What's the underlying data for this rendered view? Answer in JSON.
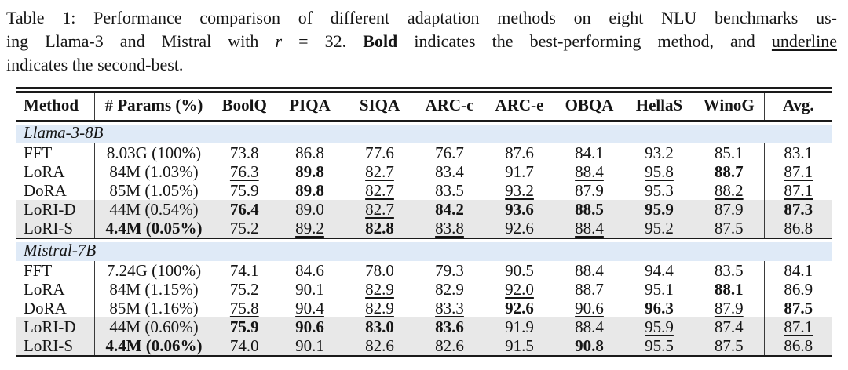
{
  "caption": {
    "lines": [
      {
        "justify": true,
        "segments": [
          {
            "text": "Table 1: Performance comparison of different adaptation methods on eight NLU benchmarks us-",
            "style": "plain"
          }
        ]
      },
      {
        "justify": true,
        "segments": [
          {
            "text": "ing Llama-3 and Mistral with ",
            "style": "plain"
          },
          {
            "text": "r",
            "style": "italic"
          },
          {
            "text": " = 32. ",
            "style": "plain"
          },
          {
            "text": "Bold",
            "style": "bold"
          },
          {
            "text": " indicates the best-performing method, and ",
            "style": "plain"
          },
          {
            "text": "underline",
            "style": "underline"
          }
        ]
      },
      {
        "justify": false,
        "segments": [
          {
            "text": "indicates the second-best.",
            "style": "plain"
          }
        ]
      }
    ]
  },
  "table": {
    "columns": [
      "Method",
      "# Params (%)",
      "BoolQ",
      "PIQA",
      "SIQA",
      "ARC-c",
      "ARC-e",
      "OBQA",
      "HellaS",
      "WinoG",
      "Avg."
    ],
    "highlight_color": "#e8e8e8",
    "section_color": "#dfeaf7",
    "sections": [
      {
        "title": "Llama-3-8B",
        "rows": [
          {
            "method": "FFT",
            "params": "8.03G (100%)",
            "params_bold": false,
            "highlight": false,
            "cells": [
              {
                "v": "73.8",
                "f": ""
              },
              {
                "v": "86.8",
                "f": ""
              },
              {
                "v": "77.6",
                "f": ""
              },
              {
                "v": "76.7",
                "f": ""
              },
              {
                "v": "87.6",
                "f": ""
              },
              {
                "v": "84.1",
                "f": ""
              },
              {
                "v": "93.2",
                "f": ""
              },
              {
                "v": "85.1",
                "f": ""
              },
              {
                "v": "83.1",
                "f": ""
              }
            ]
          },
          {
            "method": "LoRA",
            "params": "84M (1.03%)",
            "params_bold": false,
            "highlight": false,
            "cells": [
              {
                "v": "76.3",
                "f": "u"
              },
              {
                "v": "89.8",
                "f": "b"
              },
              {
                "v": "82.7",
                "f": "u"
              },
              {
                "v": "83.4",
                "f": ""
              },
              {
                "v": "91.7",
                "f": ""
              },
              {
                "v": "88.4",
                "f": "u"
              },
              {
                "v": "95.8",
                "f": "u"
              },
              {
                "v": "88.7",
                "f": "b"
              },
              {
                "v": "87.1",
                "f": "u"
              }
            ]
          },
          {
            "method": "DoRA",
            "params": "85M (1.05%)",
            "params_bold": false,
            "highlight": false,
            "cells": [
              {
                "v": "75.9",
                "f": ""
              },
              {
                "v": "89.8",
                "f": "b"
              },
              {
                "v": "82.7",
                "f": "u"
              },
              {
                "v": "83.5",
                "f": ""
              },
              {
                "v": "93.2",
                "f": "u"
              },
              {
                "v": "87.9",
                "f": ""
              },
              {
                "v": "95.3",
                "f": ""
              },
              {
                "v": "88.2",
                "f": "u"
              },
              {
                "v": "87.1",
                "f": "u"
              }
            ]
          },
          {
            "method": "LoRI-D",
            "params": "44M (0.54%)",
            "params_bold": false,
            "highlight": true,
            "cells": [
              {
                "v": "76.4",
                "f": "b"
              },
              {
                "v": "89.0",
                "f": ""
              },
              {
                "v": "82.7",
                "f": "u"
              },
              {
                "v": "84.2",
                "f": "b"
              },
              {
                "v": "93.6",
                "f": "b"
              },
              {
                "v": "88.5",
                "f": "b"
              },
              {
                "v": "95.9",
                "f": "b"
              },
              {
                "v": "87.9",
                "f": ""
              },
              {
                "v": "87.3",
                "f": "b"
              }
            ]
          },
          {
            "method": "LoRI-S",
            "params": "4.4M (0.05%)",
            "params_bold": true,
            "highlight": true,
            "cells": [
              {
                "v": "75.2",
                "f": ""
              },
              {
                "v": "89.2",
                "f": "u"
              },
              {
                "v": "82.8",
                "f": "b"
              },
              {
                "v": "83.8",
                "f": "u"
              },
              {
                "v": "92.6",
                "f": ""
              },
              {
                "v": "88.4",
                "f": "u"
              },
              {
                "v": "95.2",
                "f": ""
              },
              {
                "v": "87.5",
                "f": ""
              },
              {
                "v": "86.8",
                "f": ""
              }
            ]
          }
        ]
      },
      {
        "title": "Mistral-7B",
        "rows": [
          {
            "method": "FFT",
            "params": "7.24G (100%)",
            "params_bold": false,
            "highlight": false,
            "cells": [
              {
                "v": "74.1",
                "f": ""
              },
              {
                "v": "84.6",
                "f": ""
              },
              {
                "v": "78.0",
                "f": ""
              },
              {
                "v": "79.3",
                "f": ""
              },
              {
                "v": "90.5",
                "f": ""
              },
              {
                "v": "88.4",
                "f": ""
              },
              {
                "v": "94.4",
                "f": ""
              },
              {
                "v": "83.5",
                "f": ""
              },
              {
                "v": "84.1",
                "f": ""
              }
            ]
          },
          {
            "method": "LoRA",
            "params": "84M (1.15%)",
            "params_bold": false,
            "highlight": false,
            "cells": [
              {
                "v": "75.2",
                "f": ""
              },
              {
                "v": "90.1",
                "f": ""
              },
              {
                "v": "82.9",
                "f": "u"
              },
              {
                "v": "82.9",
                "f": ""
              },
              {
                "v": "92.0",
                "f": "u"
              },
              {
                "v": "88.7",
                "f": ""
              },
              {
                "v": "95.1",
                "f": ""
              },
              {
                "v": "88.1",
                "f": "b"
              },
              {
                "v": "86.9",
                "f": ""
              }
            ]
          },
          {
            "method": "DoRA",
            "params": "85M (1.16%)",
            "params_bold": false,
            "highlight": false,
            "cells": [
              {
                "v": "75.8",
                "f": "u"
              },
              {
                "v": "90.4",
                "f": "u"
              },
              {
                "v": "82.9",
                "f": "u"
              },
              {
                "v": "83.3",
                "f": "u"
              },
              {
                "v": "92.6",
                "f": "b"
              },
              {
                "v": "90.6",
                "f": "u"
              },
              {
                "v": "96.3",
                "f": "b"
              },
              {
                "v": "87.9",
                "f": "u"
              },
              {
                "v": "87.5",
                "f": "b"
              }
            ]
          },
          {
            "method": "LoRI-D",
            "params": "44M (0.60%)",
            "params_bold": false,
            "highlight": true,
            "cells": [
              {
                "v": "75.9",
                "f": "b"
              },
              {
                "v": "90.6",
                "f": "b"
              },
              {
                "v": "83.0",
                "f": "b"
              },
              {
                "v": "83.6",
                "f": "b"
              },
              {
                "v": "91.9",
                "f": ""
              },
              {
                "v": "88.4",
                "f": ""
              },
              {
                "v": "95.9",
                "f": "u"
              },
              {
                "v": "87.4",
                "f": ""
              },
              {
                "v": "87.1",
                "f": "u"
              }
            ]
          },
          {
            "method": "LoRI-S",
            "params": "4.4M (0.06%)",
            "params_bold": true,
            "highlight": true,
            "cells": [
              {
                "v": "74.0",
                "f": ""
              },
              {
                "v": "90.1",
                "f": ""
              },
              {
                "v": "82.6",
                "f": ""
              },
              {
                "v": "82.6",
                "f": ""
              },
              {
                "v": "91.5",
                "f": ""
              },
              {
                "v": "90.8",
                "f": "b"
              },
              {
                "v": "95.5",
                "f": ""
              },
              {
                "v": "87.5",
                "f": ""
              },
              {
                "v": "86.8",
                "f": ""
              }
            ]
          }
        ]
      }
    ]
  }
}
